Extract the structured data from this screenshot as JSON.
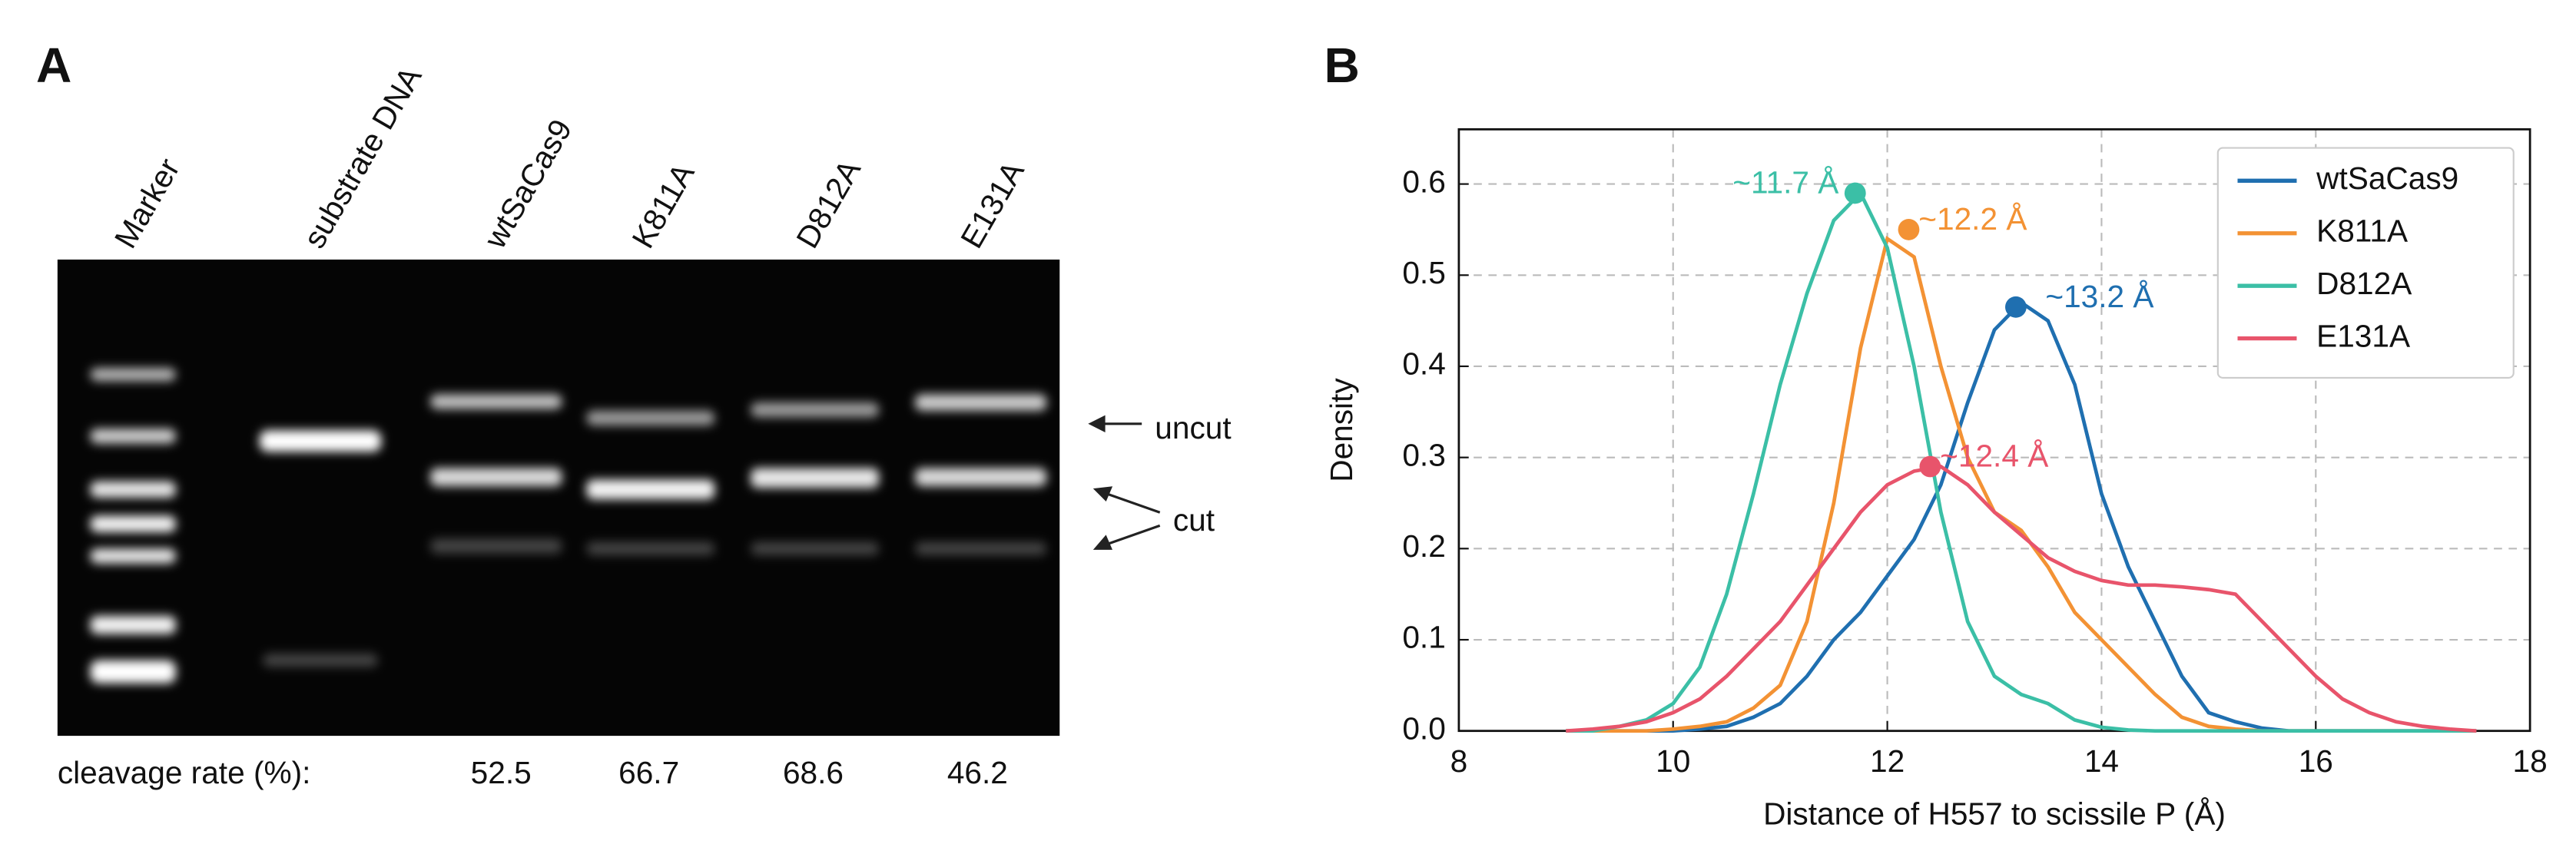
{
  "panel_a": {
    "label": "A",
    "lanes": [
      "Marker",
      "substrate DNA",
      "wtSaCas9",
      "K811A",
      "D812A",
      "E131A"
    ],
    "band_labels": [
      "uncut",
      "cut"
    ],
    "cleavage_label": "cleavage rate (%):",
    "cleavage_rates": [
      52.5,
      66.7,
      68.6,
      46.2
    ]
  },
  "chart_data": {
    "type": "line",
    "label": "B",
    "xlabel": "Distance of H557 to scissile P (Å)",
    "ylabel": "Density",
    "xlim": [
      8,
      18
    ],
    "xticks": [
      8,
      10,
      12,
      14,
      16,
      18
    ],
    "ylim": [
      0,
      0.66
    ],
    "yticks": [
      {
        "value": 0,
        "label": "0.0"
      },
      0.1,
      0.2,
      0.3,
      0.4,
      0.5,
      0.6
    ],
    "grid": true,
    "legend": "upper right",
    "x": [
      9,
      9.25,
      9.5,
      9.75,
      10,
      10.25,
      10.5,
      10.75,
      11,
      11.25,
      11.5,
      11.75,
      12,
      12.25,
      12.5,
      12.75,
      13,
      13.25,
      13.5,
      13.75,
      14,
      14.25,
      14.5,
      14.75,
      15,
      15.25,
      15.5,
      15.75,
      16,
      16.25,
      16.5,
      16.75,
      17,
      17.25,
      17.5
    ],
    "series": [
      {
        "name": "wtSaCas9",
        "color": "#1f6fb0",
        "values": [
          0,
          0,
          0,
          0,
          0,
          0.002,
          0.005,
          0.015,
          0.03,
          0.06,
          0.1,
          0.13,
          0.17,
          0.21,
          0.27,
          0.36,
          0.44,
          0.47,
          0.45,
          0.38,
          0.26,
          0.18,
          0.12,
          0.06,
          0.02,
          0.01,
          0.003,
          0,
          0,
          0,
          0,
          0,
          0,
          0,
          0
        ],
        "peak": {
          "x": 13.2,
          "y": 0.465,
          "label": "~13.2 Å"
        }
      },
      {
        "name": "K811A",
        "color": "#f39234",
        "values": [
          0,
          0,
          0,
          0,
          0.002,
          0.005,
          0.01,
          0.025,
          0.05,
          0.12,
          0.25,
          0.42,
          0.54,
          0.52,
          0.4,
          0.3,
          0.24,
          0.22,
          0.18,
          0.13,
          0.1,
          0.07,
          0.04,
          0.015,
          0.005,
          0.002,
          0,
          0,
          0,
          0,
          0,
          0,
          0,
          0,
          0
        ],
        "peak": {
          "x": 12.2,
          "y": 0.55,
          "label": "~12.2 Å"
        }
      },
      {
        "name": "D812A",
        "color": "#3bbfa6",
        "values": [
          0,
          0,
          0.005,
          0.012,
          0.03,
          0.07,
          0.15,
          0.26,
          0.38,
          0.48,
          0.56,
          0.59,
          0.53,
          0.4,
          0.24,
          0.12,
          0.06,
          0.04,
          0.03,
          0.012,
          0.004,
          0.001,
          0,
          0,
          0,
          0,
          0,
          0,
          0,
          0,
          0,
          0,
          0,
          0,
          0
        ],
        "peak": {
          "x": 11.7,
          "y": 0.59,
          "label": "~11.7 Å"
        }
      },
      {
        "name": "E131A",
        "color": "#e8546b",
        "values": [
          0,
          0.002,
          0.005,
          0.01,
          0.02,
          0.035,
          0.06,
          0.09,
          0.12,
          0.16,
          0.2,
          0.24,
          0.27,
          0.285,
          0.29,
          0.27,
          0.24,
          0.215,
          0.19,
          0.175,
          0.165,
          0.16,
          0.16,
          0.158,
          0.155,
          0.15,
          0.12,
          0.09,
          0.06,
          0.035,
          0.02,
          0.01,
          0.005,
          0.002,
          0
        ],
        "peak": {
          "x": 12.4,
          "y": 0.29,
          "label": "~12.4 Å"
        }
      }
    ]
  }
}
